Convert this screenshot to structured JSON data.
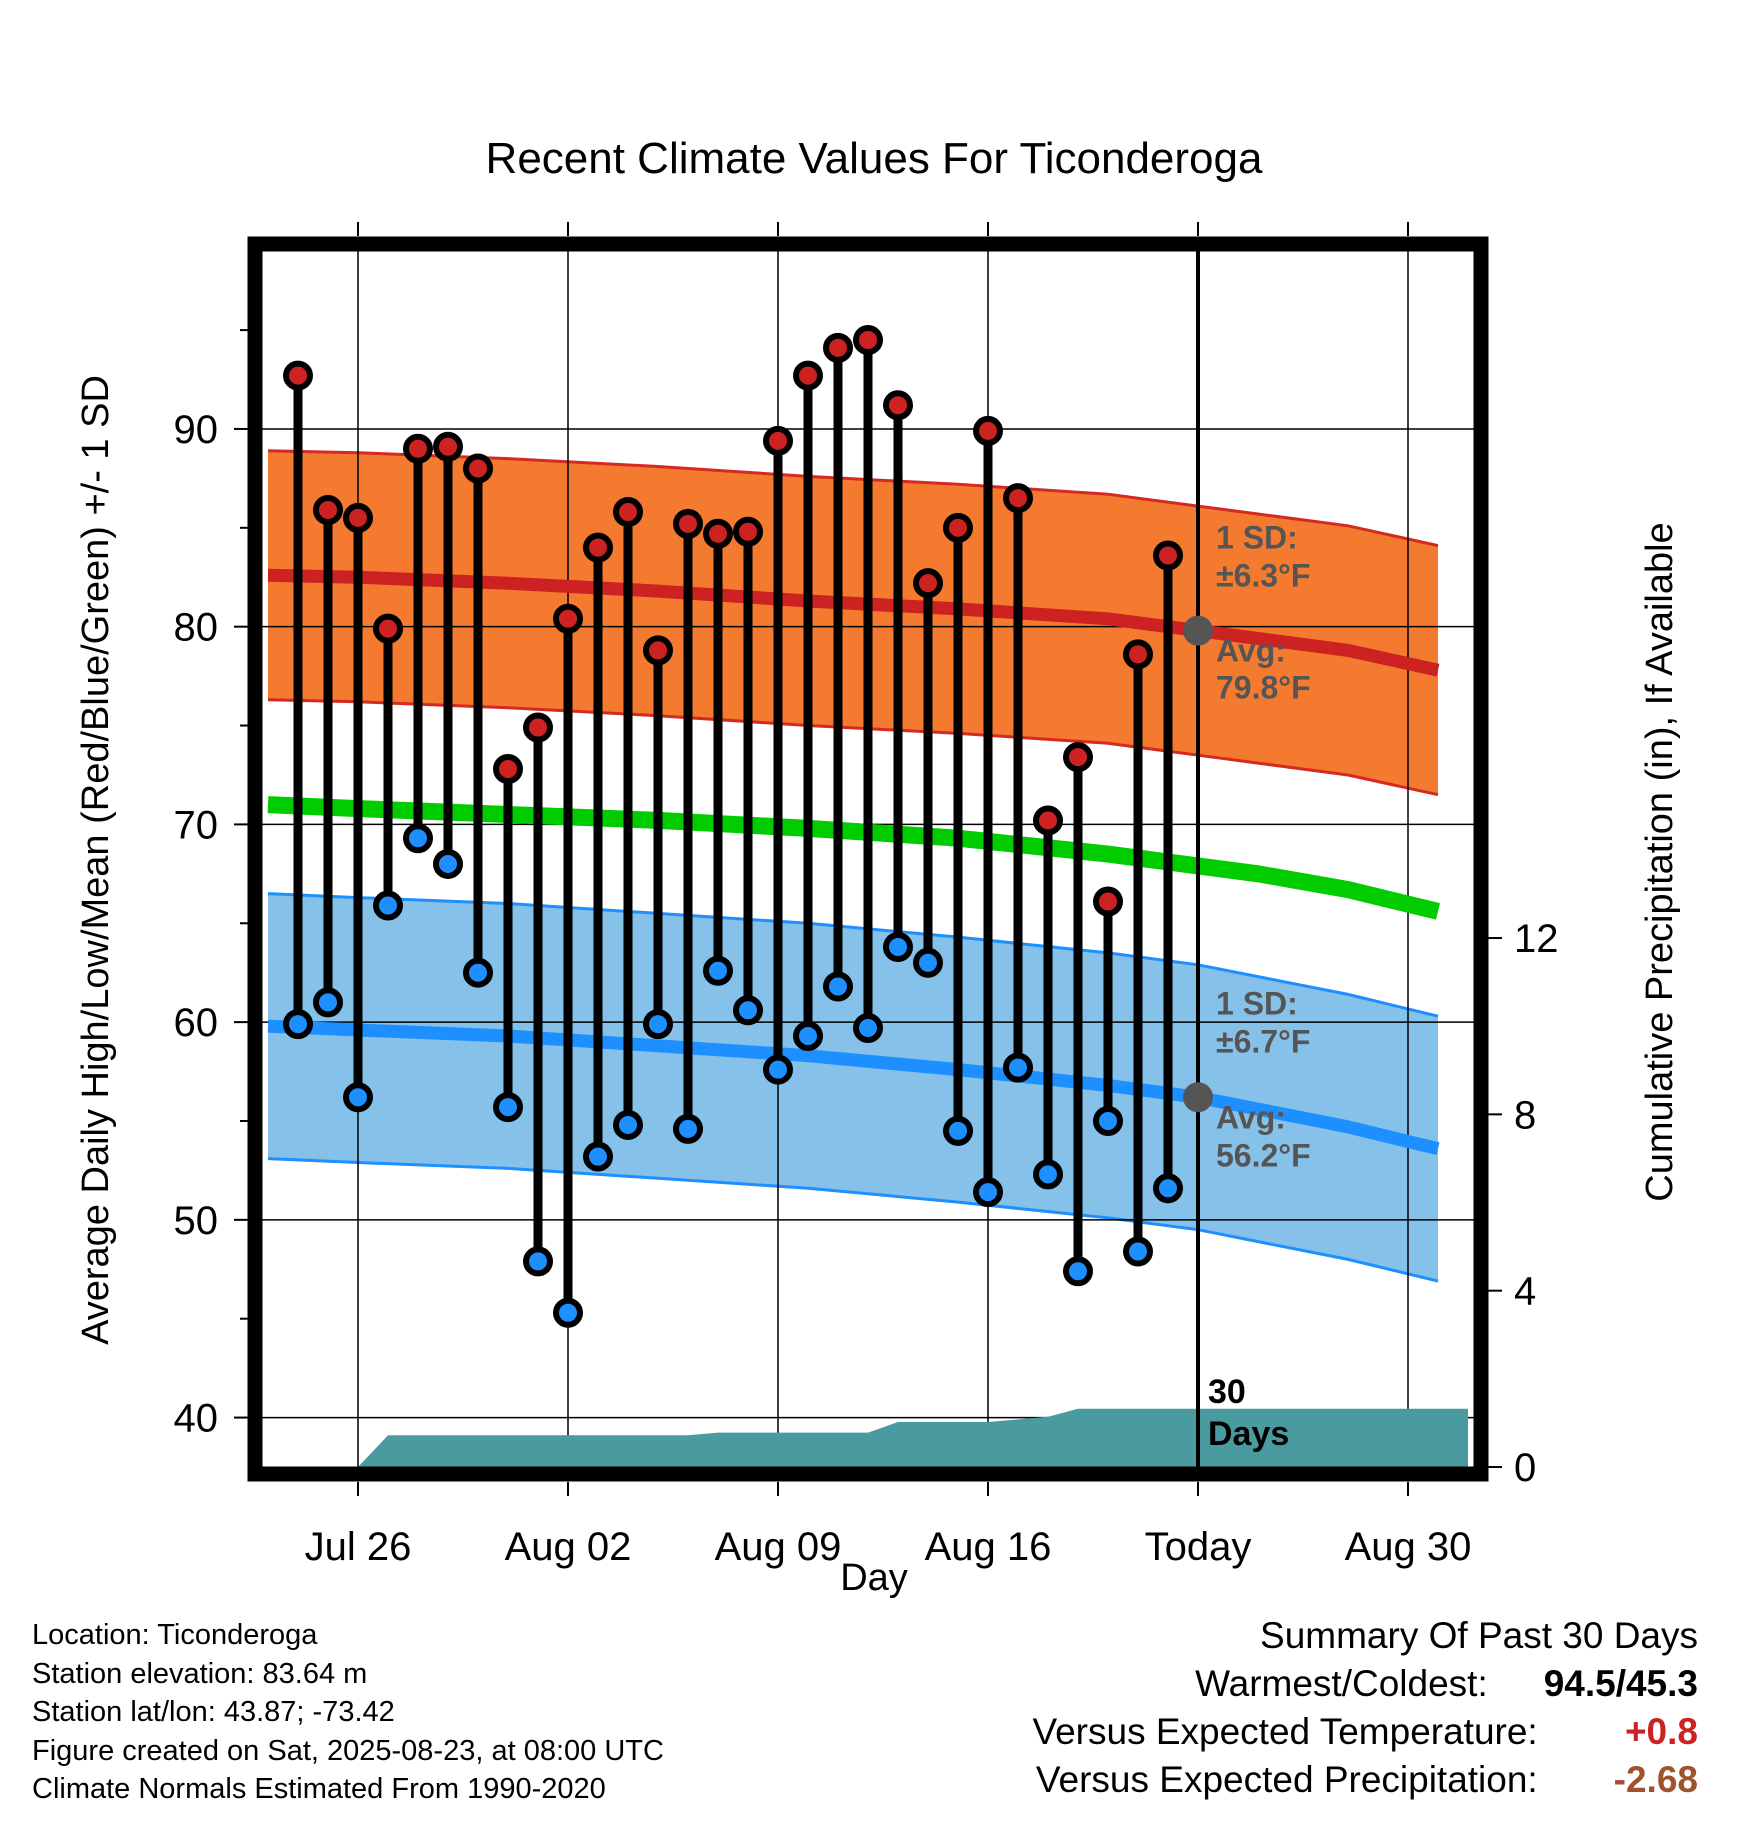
{
  "chart_data": {
    "type": "line",
    "title": "Recent Climate Values For Ticonderoga",
    "xlabel": "Day",
    "ylabel": "Average Daily High/Low/Mean (Red/Blue/Green) +/- 1 SD",
    "y2label": "Cumulative Precipitation (in), If Available",
    "ylim": [
      37.5,
      99
    ],
    "y2lim": [
      0,
      24
    ],
    "xlim": [
      -3.2,
      37.2
    ],
    "x_ticks": [
      {
        "x": 0,
        "label": "Jul 26"
      },
      {
        "x": 7,
        "label": "Aug 02"
      },
      {
        "x": 14,
        "label": "Aug 09"
      },
      {
        "x": 21,
        "label": "Aug 16"
      },
      {
        "x": 28,
        "label": "Today"
      },
      {
        "x": 35,
        "label": "Aug 30"
      }
    ],
    "y_ticks": [
      40,
      50,
      60,
      70,
      80,
      90
    ],
    "y2_ticks": [
      0,
      4,
      8,
      12
    ],
    "today_x": 28,
    "daily": {
      "x": [
        -2,
        -1,
        0,
        1,
        2,
        3,
        4,
        5,
        6,
        7,
        8,
        9,
        10,
        11,
        12,
        13,
        14,
        15,
        16,
        17,
        18,
        19,
        20,
        21,
        22,
        23,
        24,
        25,
        26,
        27
      ],
      "high": [
        92.7,
        85.9,
        85.5,
        79.9,
        89.0,
        89.1,
        88.0,
        72.8,
        74.9,
        80.4,
        84.0,
        85.8,
        78.8,
        85.2,
        84.7,
        84.8,
        89.4,
        92.7,
        94.1,
        94.5,
        91.2,
        82.2,
        85.0,
        89.9,
        86.5,
        70.2,
        73.4,
        66.1,
        78.6,
        83.6
      ],
      "low": [
        59.9,
        61.0,
        56.2,
        65.9,
        69.3,
        68.0,
        62.5,
        55.7,
        47.9,
        45.3,
        53.2,
        54.8,
        59.9,
        54.6,
        62.6,
        60.6,
        57.6,
        59.3,
        61.8,
        59.7,
        63.8,
        63.0,
        54.5,
        51.4,
        57.7,
        52.3,
        47.4,
        55.0,
        48.4,
        51.6
      ]
    },
    "normals": {
      "x": [
        -3,
        0,
        5,
        10,
        15,
        20,
        25,
        28,
        30,
        33,
        36
      ],
      "high": [
        82.6,
        82.5,
        82.2,
        81.8,
        81.3,
        80.9,
        80.4,
        79.8,
        79.4,
        78.8,
        77.8
      ],
      "low": [
        59.8,
        59.6,
        59.3,
        58.8,
        58.3,
        57.6,
        56.8,
        56.2,
        55.6,
        54.7,
        53.6
      ],
      "mean": [
        71.0,
        70.8,
        70.5,
        70.2,
        69.8,
        69.3,
        68.5,
        67.9,
        67.5,
        66.7,
        65.6
      ],
      "high_sd": 6.3,
      "low_sd": 6.7
    },
    "precip": {
      "x": [
        -3,
        0,
        1,
        4,
        7,
        11,
        12,
        14,
        17,
        18,
        19,
        21,
        22,
        23,
        24,
        25,
        27,
        28,
        37
      ],
      "cumulative": [
        0,
        0,
        0.72,
        0.72,
        0.72,
        0.72,
        0.78,
        0.78,
        0.78,
        1.02,
        1.02,
        1.02,
        1.08,
        1.14,
        1.32,
        1.32,
        1.32,
        1.32,
        1.32
      ]
    },
    "series_colors": {
      "high": "#cc2222",
      "low": "#1e8fff",
      "mean": "#00cc00",
      "high_band": "#f47a30",
      "low_band": "#85c1e8",
      "precip": "#4a9ba0",
      "today_marker": "#555555"
    },
    "grid": true
  },
  "annotations": {
    "high_sd_line1": "1 SD:",
    "high_sd_line2": "±6.3°F",
    "high_avg_line1": "Avg:",
    "high_avg_line2": "79.8°F",
    "low_sd_line1": "1 SD:",
    "low_sd_line2": "±6.7°F",
    "low_avg_line1": "Avg:",
    "low_avg_line2": "56.2°F",
    "days_line1": "30",
    "days_line2": "Days"
  },
  "footer": {
    "location": "Location: Ticonderoga",
    "elevation": "Station elevation: 83.64 m",
    "latlon": "Station lat/lon: 43.87; -73.42",
    "created": "Figure created on Sat, 2025-08-23, at 08:00 UTC",
    "normals": "Climate Normals Estimated From 1990-2020"
  },
  "summary": {
    "heading": "Summary Of Past 30 Days",
    "warm_cold_label": "Warmest/Coldest:",
    "warm_cold_value": "94.5/45.3",
    "temp_label": "Versus Expected Temperature:",
    "temp_value": "+0.8",
    "temp_color": "#cc2222",
    "precip_label": "Versus Expected Precipitation:",
    "precip_value": "-2.68",
    "precip_color": "#a0522d"
  }
}
